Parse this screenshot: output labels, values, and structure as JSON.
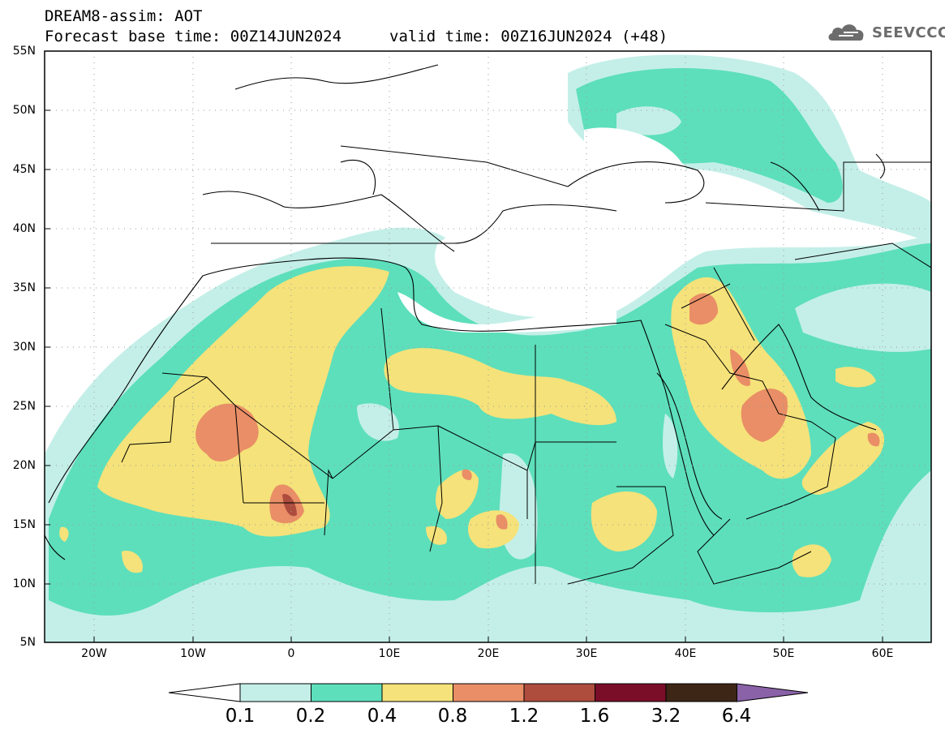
{
  "header": {
    "line1": "DREAM8-assim: AOT",
    "base_time": "Forecast base time: 00Z14JUN2024",
    "valid_time": "valid time: 00Z16JUN2024 (+48)"
  },
  "logo": {
    "text": "SEEVCCC",
    "icon": "cloud-icon"
  },
  "map": {
    "variable": "AOT",
    "projection": "lat-lon",
    "lon_range": [
      -25,
      65
    ],
    "lat_range": [
      5,
      55
    ],
    "lat_labels": [
      "55N",
      "50N",
      "45N",
      "40N",
      "35N",
      "30N",
      "25N",
      "20N",
      "15N",
      "10N",
      "5N"
    ],
    "lon_labels": [
      "20W",
      "10W",
      "0",
      "10E",
      "20E",
      "30E",
      "40E",
      "50E",
      "60E"
    ],
    "grid": "dotted"
  },
  "colorbar": {
    "labels": [
      "0.1",
      "0.2",
      "0.4",
      "0.8",
      "1.2",
      "1.6",
      "3.2",
      "6.4"
    ],
    "colors": [
      "#ffffff",
      "#c4efe8",
      "#5ddfbb",
      "#f5e27a",
      "#e98e66",
      "#ae4d3e",
      "#7a0e28",
      "#3d2616",
      "#8a62a8"
    ]
  }
}
